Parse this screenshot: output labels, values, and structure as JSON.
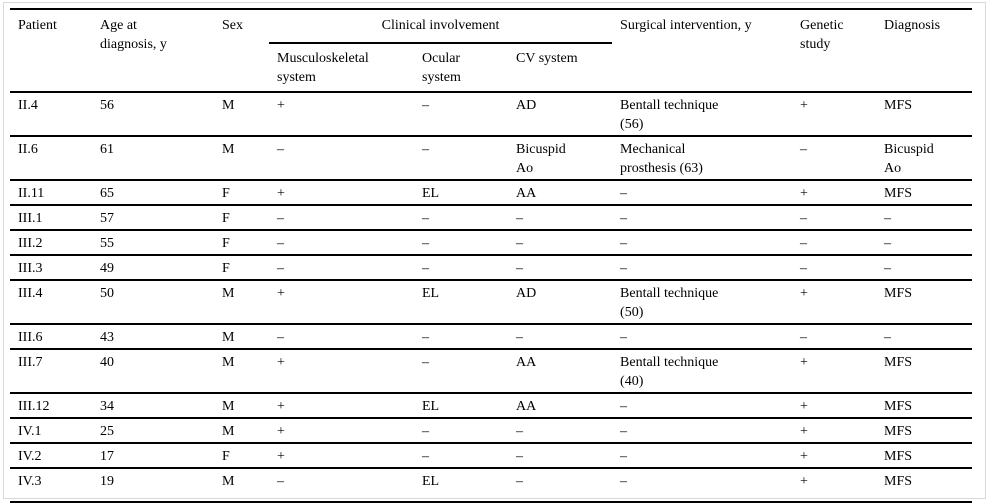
{
  "page": {
    "background_color": "#ffffff",
    "frame_color": "#d8d8d8",
    "rule_color": "#000000",
    "text_color": "#000000"
  },
  "table": {
    "header": {
      "patient": "Patient",
      "age": "Age at\ndiagnosis, y",
      "sex": "Sex",
      "clinical_group": "Clinical involvement",
      "musculoskeletal": "Musculoskeletal\nsystem",
      "ocular": "Ocular\nsystem",
      "cv": "CV system",
      "surgical": "Surgical intervention, y",
      "genetic": "Genetic\nstudy",
      "diagnosis": "Diagnosis"
    },
    "column_keys": [
      "patient",
      "age",
      "sex",
      "musculoskeletal",
      "ocular",
      "cv",
      "surgical",
      "genetic",
      "diagnosis"
    ],
    "rows": [
      {
        "patient": "II.4",
        "age": "56",
        "sex": "M",
        "musculoskeletal": "+",
        "ocular": "–",
        "cv": "AD",
        "surgical": "Bentall technique\n(56)",
        "genetic": "+",
        "diagnosis": "MFS"
      },
      {
        "patient": "II.6",
        "age": "61",
        "sex": "M",
        "musculoskeletal": "–",
        "ocular": "–",
        "cv": "Bicuspid\nAo",
        "surgical": "Mechanical\nprosthesis (63)",
        "genetic": "–",
        "diagnosis": "Bicuspid\nAo"
      },
      {
        "patient": "II.11",
        "age": "65",
        "sex": "F",
        "musculoskeletal": "+",
        "ocular": "EL",
        "cv": "AA",
        "surgical": "–",
        "genetic": "+",
        "diagnosis": "MFS"
      },
      {
        "patient": "III.1",
        "age": "57",
        "sex": "F",
        "musculoskeletal": "–",
        "ocular": "–",
        "cv": "–",
        "surgical": "–",
        "genetic": "–",
        "diagnosis": "–"
      },
      {
        "patient": "III.2",
        "age": "55",
        "sex": "F",
        "musculoskeletal": "–",
        "ocular": "–",
        "cv": "–",
        "surgical": "–",
        "genetic": "–",
        "diagnosis": "–"
      },
      {
        "patient": "III.3",
        "age": "49",
        "sex": "F",
        "musculoskeletal": "–",
        "ocular": "–",
        "cv": "–",
        "surgical": "–",
        "genetic": "–",
        "diagnosis": "–"
      },
      {
        "patient": "III.4",
        "age": "50",
        "sex": "M",
        "musculoskeletal": "+",
        "ocular": "EL",
        "cv": "AD",
        "surgical": "Bentall technique\n(50)",
        "genetic": "+",
        "diagnosis": "MFS"
      },
      {
        "patient": "III.6",
        "age": "43",
        "sex": "M",
        "musculoskeletal": "–",
        "ocular": "–",
        "cv": "–",
        "surgical": "–",
        "genetic": "–",
        "diagnosis": "–"
      },
      {
        "patient": "III.7",
        "age": "40",
        "sex": "M",
        "musculoskeletal": "+",
        "ocular": "–",
        "cv": "AA",
        "surgical": "Bentall technique\n(40)",
        "genetic": "+",
        "diagnosis": "MFS"
      },
      {
        "patient": "III.12",
        "age": "34",
        "sex": "M",
        "musculoskeletal": "+",
        "ocular": "EL",
        "cv": "AA",
        "surgical": "–",
        "genetic": "+",
        "diagnosis": "MFS"
      },
      {
        "patient": "IV.1",
        "age": "25",
        "sex": "M",
        "musculoskeletal": "+",
        "ocular": "–",
        "cv": "–",
        "surgical": "–",
        "genetic": "+",
        "diagnosis": "MFS"
      },
      {
        "patient": "IV.2",
        "age": "17",
        "sex": "F",
        "musculoskeletal": "+",
        "ocular": "–",
        "cv": "–",
        "surgical": "–",
        "genetic": "+",
        "diagnosis": "MFS"
      },
      {
        "patient": "IV.3",
        "age": "19",
        "sex": "M",
        "musculoskeletal": "–",
        "ocular": "EL",
        "cv": "–",
        "surgical": "–",
        "genetic": "+",
        "diagnosis": "MFS"
      }
    ]
  }
}
